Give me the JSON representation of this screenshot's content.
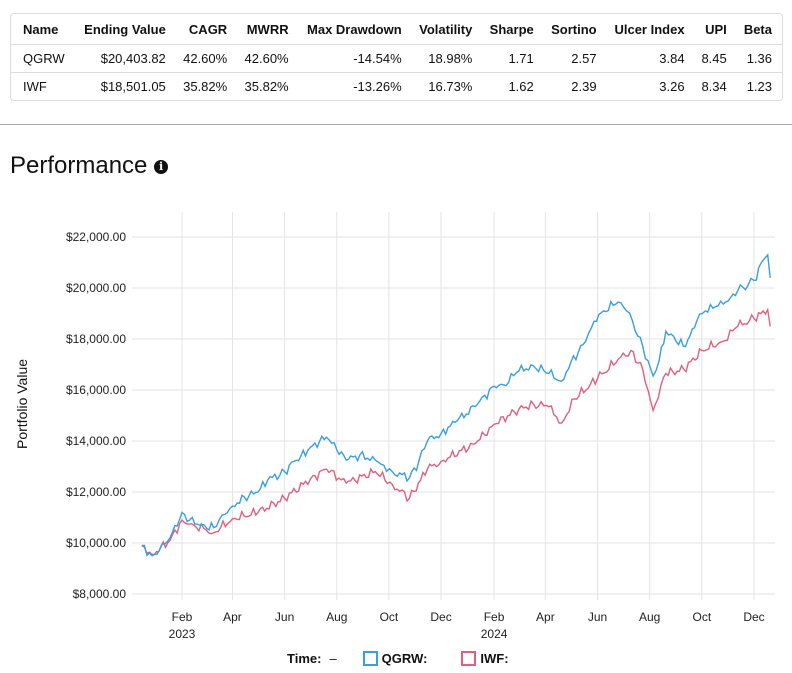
{
  "table": {
    "headers": [
      "Name",
      "Ending Value",
      "CAGR",
      "MWRR",
      "Max Drawdown",
      "Volatility",
      "Sharpe",
      "Sortino",
      "Ulcer Index",
      "UPI",
      "Beta"
    ],
    "rows": [
      [
        "QGRW",
        "$20,403.82",
        "42.60%",
        "42.60%",
        "-14.54%",
        "18.98%",
        "1.71",
        "2.57",
        "3.84",
        "8.45",
        "1.36"
      ],
      [
        "IWF",
        "$18,501.05",
        "35.82%",
        "35.82%",
        "-13.26%",
        "16.73%",
        "1.62",
        "2.39",
        "3.26",
        "8.34",
        "1.23"
      ]
    ]
  },
  "section": {
    "title": "Performance",
    "info_icon": "info-circle-icon"
  },
  "chart_data": {
    "type": "line",
    "ylabel": "Portfolio Value",
    "ylim": [
      8000,
      22000
    ],
    "yticks": [
      "$8,000.00",
      "$10,000.00",
      "$12,000.00",
      "$14,000.00",
      "$16,000.00",
      "$18,000.00",
      "$20,000.00",
      "$22,000.00"
    ],
    "ytick_values": [
      8000,
      10000,
      12000,
      14000,
      16000,
      18000,
      20000,
      22000
    ],
    "xlim": [
      "2022-12-16",
      "2024-12-20"
    ],
    "xticks": [
      {
        "date": "2023-02-01",
        "label": "Feb",
        "sub": "2023"
      },
      {
        "date": "2023-04-01",
        "label": "Apr"
      },
      {
        "date": "2023-06-01",
        "label": "Jun"
      },
      {
        "date": "2023-08-01",
        "label": "Aug"
      },
      {
        "date": "2023-10-01",
        "label": "Oct"
      },
      {
        "date": "2023-12-01",
        "label": "Dec"
      },
      {
        "date": "2024-02-01",
        "label": "Feb",
        "sub": "2024"
      },
      {
        "date": "2024-04-01",
        "label": "Apr"
      },
      {
        "date": "2024-06-01",
        "label": "Jun"
      },
      {
        "date": "2024-08-01",
        "label": "Aug"
      },
      {
        "date": "2024-10-01",
        "label": "Oct"
      },
      {
        "date": "2024-12-01",
        "label": "Dec"
      }
    ],
    "grid": true,
    "legend": {
      "time_label": "Time:",
      "time_value": "–",
      "position": "bottom"
    },
    "series": [
      {
        "name": "QGRW:",
        "color": "#3a9ee0",
        "points": [
          [
            "2022-12-16",
            9900
          ],
          [
            "2022-12-28",
            9500
          ],
          [
            "2023-01-06",
            9750
          ],
          [
            "2023-01-18",
            10200
          ],
          [
            "2023-02-01",
            11200
          ],
          [
            "2023-02-10",
            10900
          ],
          [
            "2023-02-22",
            10700
          ],
          [
            "2023-03-10",
            10600
          ],
          [
            "2023-03-20",
            11100
          ],
          [
            "2023-04-01",
            11450
          ],
          [
            "2023-04-15",
            11800
          ],
          [
            "2023-05-01",
            12000
          ],
          [
            "2023-05-12",
            12450
          ],
          [
            "2023-06-01",
            12800
          ],
          [
            "2023-06-12",
            13200
          ],
          [
            "2023-06-20",
            13400
          ],
          [
            "2023-07-01",
            13750
          ],
          [
            "2023-07-20",
            14150
          ],
          [
            "2023-08-01",
            13650
          ],
          [
            "2023-08-12",
            13250
          ],
          [
            "2023-08-28",
            13450
          ],
          [
            "2023-09-15",
            13250
          ],
          [
            "2023-09-25",
            13050
          ],
          [
            "2023-10-05",
            12800
          ],
          [
            "2023-10-25",
            12550
          ],
          [
            "2023-11-05",
            13200
          ],
          [
            "2023-11-15",
            14000
          ],
          [
            "2023-12-01",
            14300
          ],
          [
            "2023-12-20",
            14800
          ],
          [
            "2024-01-10",
            15350
          ],
          [
            "2024-02-01",
            16150
          ],
          [
            "2024-02-12",
            16200
          ],
          [
            "2024-03-01",
            16750
          ],
          [
            "2024-03-18",
            16950
          ],
          [
            "2024-04-05",
            16650
          ],
          [
            "2024-04-20",
            16350
          ],
          [
            "2024-05-01",
            17100
          ],
          [
            "2024-05-18",
            17900
          ],
          [
            "2024-05-28",
            18700
          ],
          [
            "2024-06-08",
            19100
          ],
          [
            "2024-06-25",
            19450
          ],
          [
            "2024-07-05",
            19100
          ],
          [
            "2024-07-12",
            18700
          ],
          [
            "2024-07-24",
            17700
          ],
          [
            "2024-08-05",
            16550
          ],
          [
            "2024-08-12",
            17150
          ],
          [
            "2024-08-20",
            18300
          ],
          [
            "2024-09-01",
            17900
          ],
          [
            "2024-09-12",
            17700
          ],
          [
            "2024-09-25",
            18700
          ],
          [
            "2024-10-05",
            19100
          ],
          [
            "2024-10-20",
            19300
          ],
          [
            "2024-11-01",
            19500
          ],
          [
            "2024-11-12",
            19900
          ],
          [
            "2024-11-24",
            20100
          ],
          [
            "2024-12-01",
            20300
          ],
          [
            "2024-12-12",
            21100
          ],
          [
            "2024-12-17",
            21300
          ],
          [
            "2024-12-20",
            20400
          ]
        ]
      },
      {
        "name": "IWF:",
        "color": "#e0607e",
        "points": [
          [
            "2022-12-16",
            9900
          ],
          [
            "2022-12-28",
            9550
          ],
          [
            "2023-01-18",
            10100
          ],
          [
            "2023-02-01",
            10900
          ],
          [
            "2023-02-15",
            10700
          ],
          [
            "2023-03-10",
            10400
          ],
          [
            "2023-04-01",
            10950
          ],
          [
            "2023-05-01",
            11200
          ],
          [
            "2023-06-01",
            11750
          ],
          [
            "2023-07-01",
            12500
          ],
          [
            "2023-07-20",
            12900
          ],
          [
            "2023-08-12",
            12350
          ],
          [
            "2023-09-15",
            12800
          ],
          [
            "2023-10-05",
            12300
          ],
          [
            "2023-10-25",
            11750
          ],
          [
            "2023-11-15",
            12900
          ],
          [
            "2023-12-01",
            13200
          ],
          [
            "2024-01-10",
            13900
          ],
          [
            "2024-02-01",
            14650
          ],
          [
            "2024-03-01",
            15250
          ],
          [
            "2024-03-18",
            15450
          ],
          [
            "2024-04-05",
            15350
          ],
          [
            "2024-04-20",
            14700
          ],
          [
            "2024-05-05",
            15650
          ],
          [
            "2024-06-01",
            16450
          ],
          [
            "2024-06-25",
            17200
          ],
          [
            "2024-07-10",
            17550
          ],
          [
            "2024-07-24",
            16800
          ],
          [
            "2024-08-05",
            15200
          ],
          [
            "2024-08-20",
            16650
          ],
          [
            "2024-09-10",
            16800
          ],
          [
            "2024-10-01",
            17550
          ],
          [
            "2024-10-25",
            17900
          ],
          [
            "2024-11-12",
            18500
          ],
          [
            "2024-12-01",
            18800
          ],
          [
            "2024-12-17",
            19150
          ],
          [
            "2024-12-20",
            18500
          ]
        ]
      }
    ]
  }
}
